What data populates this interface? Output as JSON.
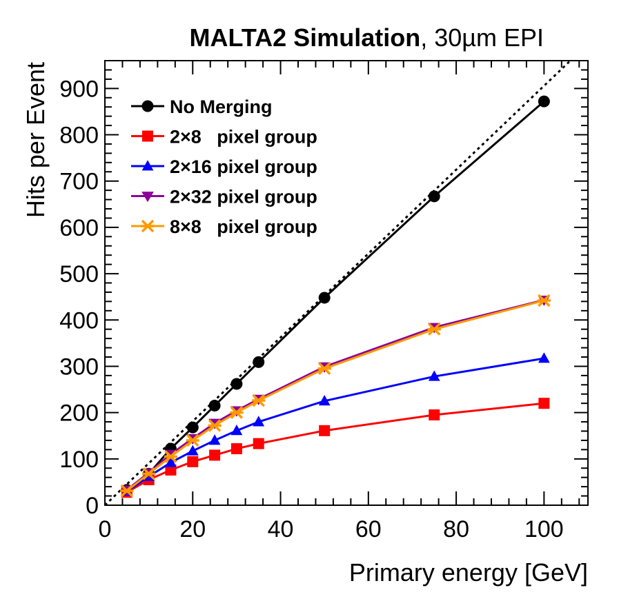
{
  "chart_data": {
    "type": "line",
    "title_bold": "MALTA2 Simulation",
    "title_rest": ", 30µm EPI",
    "xlabel": "Primary energy [GeV]",
    "ylabel": "Hits per Event",
    "xlim": [
      0,
      110
    ],
    "ylim": [
      0,
      960
    ],
    "xticks": [
      0,
      20,
      40,
      60,
      80,
      100
    ],
    "yticks": [
      0,
      100,
      200,
      300,
      400,
      500,
      600,
      700,
      800,
      900
    ],
    "xtick_labels": [
      "0",
      "20",
      "40",
      "60",
      "80",
      "100"
    ],
    "ytick_labels": [
      "0",
      "100",
      "200",
      "300",
      "400",
      "500",
      "600",
      "700",
      "800",
      "900"
    ],
    "reference_line": {
      "style": "dotted",
      "color": "#000000",
      "x": [
        0,
        106
      ],
      "y": [
        0,
        960
      ]
    },
    "legend_position": "top-left",
    "x": [
      5,
      10,
      15,
      20,
      25,
      30,
      35,
      50,
      75,
      100
    ],
    "series": [
      {
        "name": "No Merging",
        "color": "#000000",
        "marker": "circle",
        "values": [
          33,
          68,
          122,
          168,
          215,
          262,
          309,
          448,
          667,
          872
        ]
      },
      {
        "name": "2×8   pixel group",
        "color": "#ff0000",
        "marker": "square",
        "values": [
          28,
          55,
          76,
          94,
          108,
          122,
          133,
          161,
          195,
          220
        ]
      },
      {
        "name": "2×16 pixel group",
        "color": "#0000ff",
        "marker": "triangle-up",
        "values": [
          30,
          62,
          92,
          117,
          140,
          161,
          180,
          225,
          278,
          317
        ]
      },
      {
        "name": "2×32 pixel group",
        "color": "#8b0099",
        "marker": "triangle-down",
        "values": [
          33,
          70,
          110,
          144,
          177,
          204,
          229,
          299,
          384,
          443
        ]
      },
      {
        "name": "8×8   pixel group",
        "color": "#ff9900",
        "marker": "x",
        "values": [
          31,
          68,
          105,
          140,
          172,
          200,
          226,
          295,
          380,
          442
        ]
      }
    ]
  }
}
